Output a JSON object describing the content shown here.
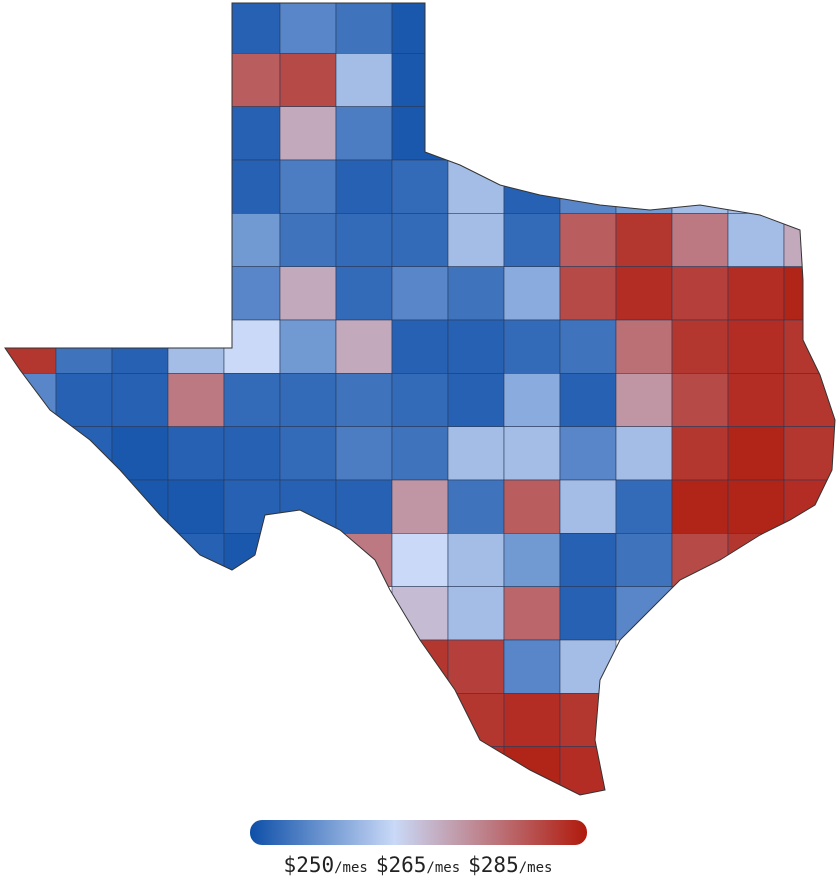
{
  "map": {
    "title_hidden": false,
    "colors": [
      "#0d4fa8",
      "#c9d9f7",
      "#b01a0c"
    ],
    "rows": [
      [
        null,
        null,
        null,
        null,
        252,
        256,
        254,
        251,
        null,
        null,
        null,
        null,
        null,
        null,
        null
      ],
      [
        null,
        null,
        null,
        null,
        278,
        280,
        262,
        251,
        null,
        null,
        null,
        null,
        null,
        null,
        null
      ],
      [
        null,
        null,
        null,
        null,
        252,
        270,
        255,
        251,
        null,
        null,
        null,
        null,
        null,
        null,
        null
      ],
      [
        null,
        null,
        null,
        null,
        252,
        255,
        252,
        253,
        262,
        252,
        256,
        258,
        262,
        262,
        null
      ],
      [
        null,
        null,
        null,
        null,
        258,
        254,
        253,
        253,
        262,
        253,
        278,
        282,
        275,
        262,
        270
      ],
      [
        null,
        null,
        null,
        null,
        256,
        270,
        253,
        256,
        254,
        260,
        280,
        283,
        281,
        283,
        284
      ],
      [
        282,
        254,
        252,
        262,
        265,
        258,
        270,
        252,
        252,
        253,
        254,
        276,
        282,
        283,
        282
      ],
      [
        256,
        252,
        252,
        275,
        253,
        253,
        254,
        253,
        252,
        260,
        252,
        272,
        280,
        283,
        282
      ],
      [
        null,
        252,
        251,
        252,
        252,
        253,
        255,
        254,
        262,
        262,
        256,
        262,
        282,
        284,
        282
      ],
      [
        null,
        null,
        251,
        251,
        252,
        252,
        252,
        272,
        254,
        278,
        262,
        253,
        284,
        284,
        283
      ],
      [
        null,
        null,
        null,
        252,
        251,
        null,
        275,
        265,
        262,
        258,
        252,
        254,
        280,
        282,
        null
      ],
      [
        null,
        null,
        null,
        null,
        null,
        null,
        null,
        268,
        262,
        277,
        252,
        256,
        null,
        null,
        null
      ],
      [
        null,
        null,
        null,
        null,
        null,
        null,
        null,
        282,
        281,
        256,
        262,
        null,
        null,
        null,
        null
      ],
      [
        null,
        null,
        null,
        null,
        null,
        null,
        null,
        null,
        282,
        283,
        282,
        null,
        null,
        null,
        null
      ],
      [
        null,
        null,
        null,
        null,
        null,
        null,
        null,
        null,
        283,
        284,
        283,
        null,
        null,
        null,
        null
      ]
    ]
  },
  "legend": {
    "range": [
      250,
      285
    ],
    "ticks": [
      {
        "value": 250,
        "label": "$250",
        "suffix": "/mes"
      },
      {
        "value": 265,
        "label": "$265",
        "suffix": "/mes"
      },
      {
        "value": 285,
        "label": "$285",
        "suffix": "/mes"
      }
    ]
  }
}
